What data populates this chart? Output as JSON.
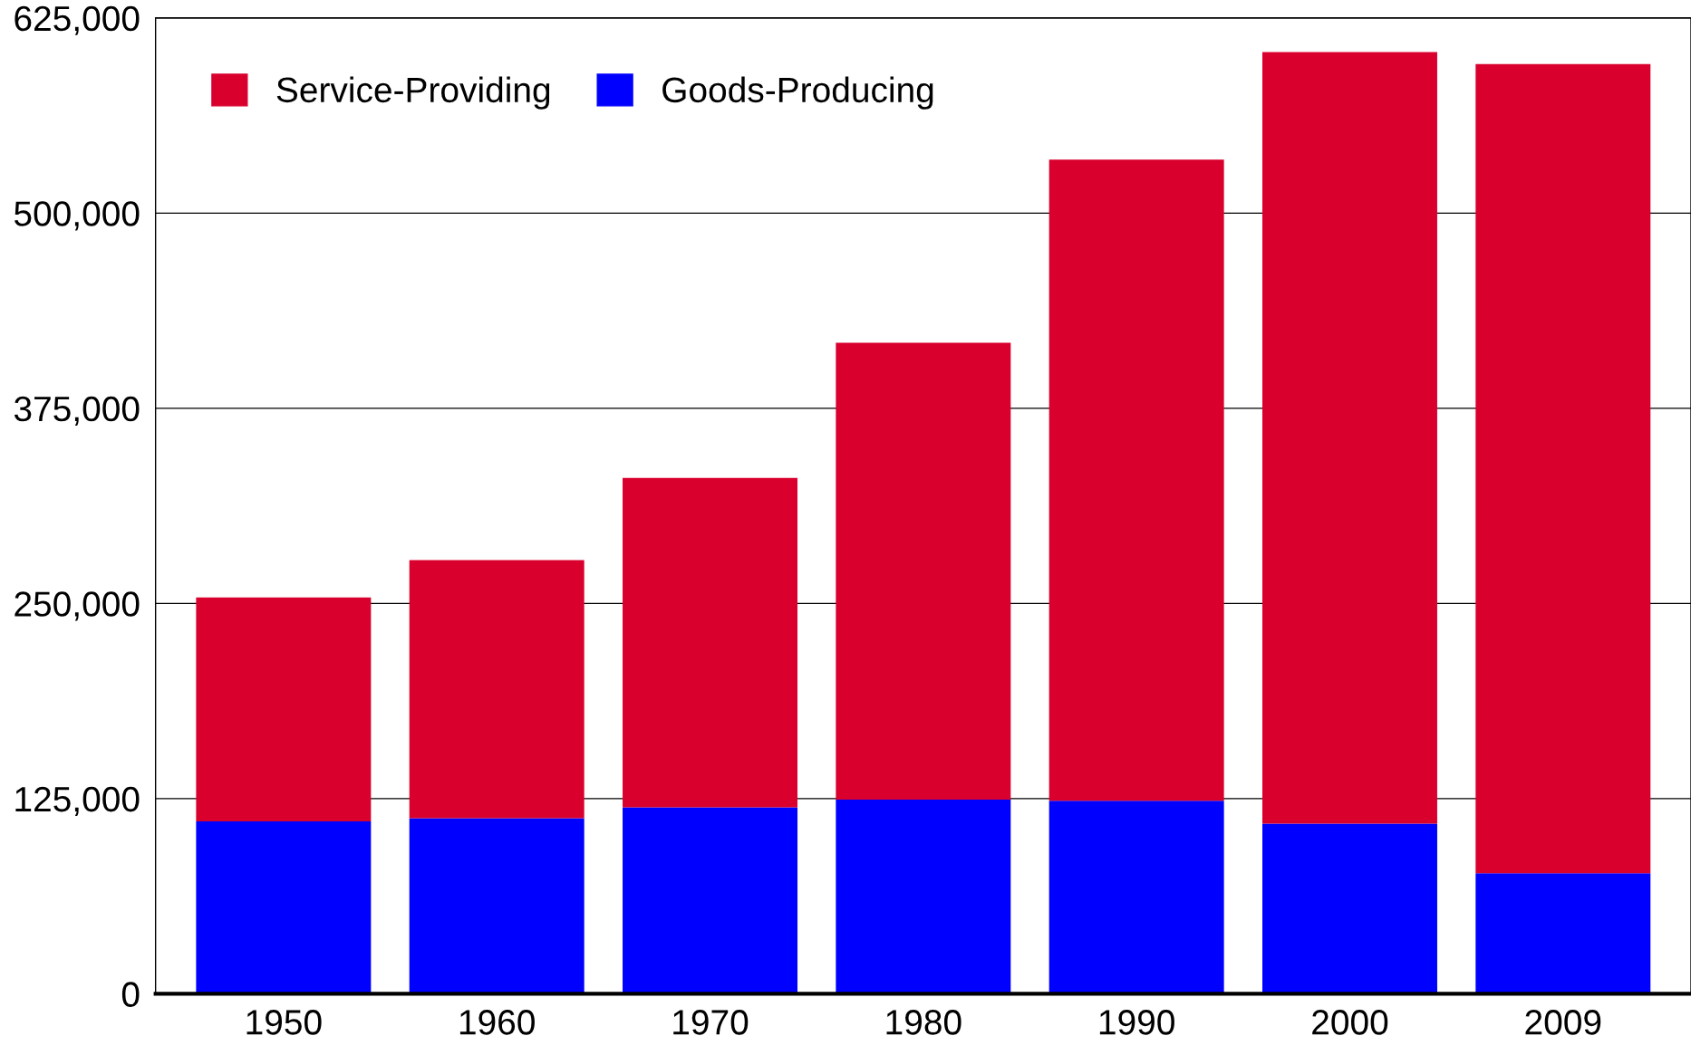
{
  "chart_data": {
    "type": "bar",
    "stacked": true,
    "categories": [
      "1950",
      "1960",
      "1970",
      "1980",
      "1990",
      "2000",
      "2009"
    ],
    "series": [
      {
        "name": "Goods-Producing",
        "color": "#0000ff",
        "values": [
          110400,
          112500,
          119500,
          124400,
          123700,
          109000,
          77300
        ]
      },
      {
        "name": "Service-Providing",
        "color": "#d9002e",
        "values": [
          143400,
          165200,
          210900,
          292500,
          410600,
          494200,
          518100
        ]
      }
    ],
    "ylim": [
      0,
      625000
    ],
    "yticks": [
      0,
      {
        "value": 125000,
        "label": "125,000"
      },
      {
        "value": 250000,
        "label": "250,000"
      },
      {
        "value": 375000,
        "label": "375,000"
      },
      {
        "value": 500000,
        "label": "500,000"
      },
      {
        "value": 625000,
        "label": "625,000"
      }
    ],
    "grid": "y",
    "legend": "top left"
  }
}
